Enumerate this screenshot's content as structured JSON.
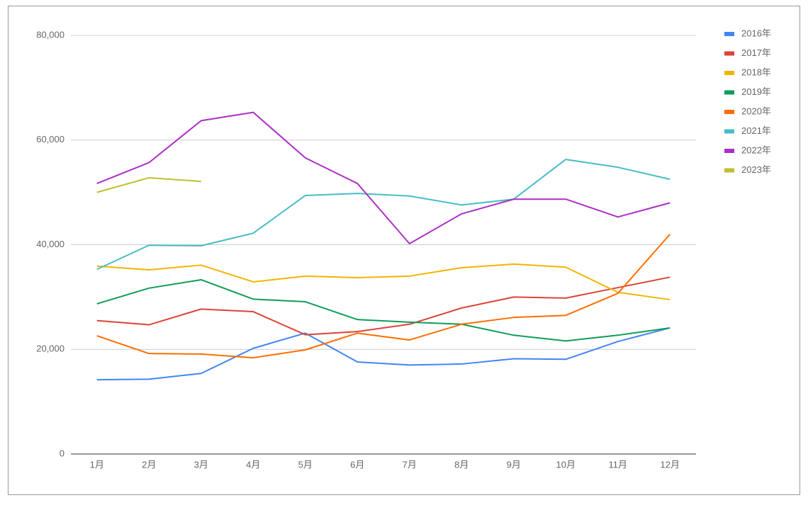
{
  "chart_data": {
    "type": "line",
    "categories": [
      "1月",
      "2月",
      "3月",
      "4月",
      "5月",
      "6月",
      "7月",
      "8月",
      "9月",
      "10月",
      "11月",
      "12月"
    ],
    "series": [
      {
        "name": "2016年",
        "color": "#4285f4",
        "values": [
          14200,
          14300,
          15400,
          20200,
          23100,
          17600,
          17000,
          17200,
          18200,
          18100,
          21500,
          24100
        ]
      },
      {
        "name": "2017年",
        "color": "#db4437",
        "values": [
          25500,
          24700,
          27700,
          27200,
          22800,
          23400,
          24800,
          27900,
          30000,
          29800,
          31800,
          33800
        ]
      },
      {
        "name": "2018年",
        "color": "#f4b400",
        "values": [
          35900,
          35200,
          36100,
          32900,
          34000,
          33700,
          34000,
          35600,
          36300,
          35700,
          30900,
          29500
        ]
      },
      {
        "name": "2019年",
        "color": "#0f9d58",
        "values": [
          28700,
          31700,
          33300,
          29600,
          29100,
          25700,
          25200,
          24800,
          22700,
          21600,
          22700,
          24100
        ]
      },
      {
        "name": "2020年",
        "color": "#ff6d00",
        "values": [
          22600,
          19200,
          19100,
          18400,
          19900,
          23100,
          21800,
          24800,
          26100,
          26500,
          30700,
          42000
        ]
      },
      {
        "name": "2021年",
        "color": "#46bdc6",
        "values": [
          35300,
          39900,
          39800,
          42200,
          49400,
          49800,
          49300,
          47600,
          48700,
          56300,
          54800,
          52500
        ]
      },
      {
        "name": "2022年",
        "color": "#ab30c4",
        "values": [
          51700,
          55700,
          63700,
          65300,
          56600,
          51700,
          40200,
          45900,
          48700,
          48700,
          45300,
          48000
        ]
      },
      {
        "name": "2023年",
        "color": "#bfbf2f",
        "values": [
          50000,
          52800,
          52100,
          null,
          null,
          null,
          null,
          null,
          null,
          null,
          null,
          null
        ]
      }
    ],
    "ylim": [
      0,
      80000
    ],
    "yticks": [
      0,
      {
        "value": 20000,
        "label": "20,000"
      },
      {
        "value": 40000,
        "label": "40,000"
      },
      {
        "value": 60000,
        "label": "60,000"
      },
      {
        "value": 80000,
        "label": "80,000"
      }
    ],
    "grid": true,
    "legend": "right"
  }
}
